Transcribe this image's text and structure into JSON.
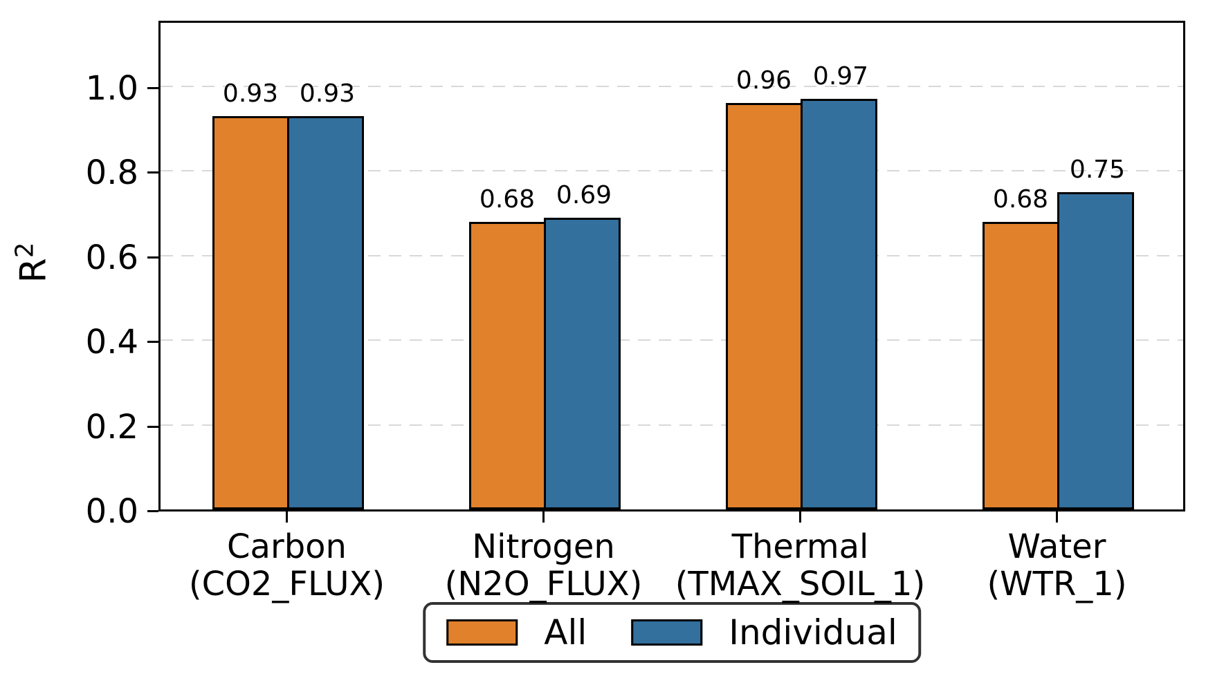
{
  "chart_data": {
    "type": "bar",
    "title": "",
    "xlabel": "",
    "ylabel": "R²",
    "ylabel_base": "R",
    "ylabel_exponent": "2",
    "categories": [
      "Carbon\n(CO2_FLUX)",
      "Nitrogen\n(N2O_FLUX)",
      "Thermal\n(TMAX_SOIL_1)",
      "Water\n(WTR_1)"
    ],
    "series": [
      {
        "name": "All",
        "color": "#e1812c",
        "values": [
          0.93,
          0.68,
          0.96,
          0.68
        ],
        "value_labels": [
          "0.93",
          "0.68",
          "0.96",
          "0.68"
        ]
      },
      {
        "name": "Individual",
        "color": "#33709e",
        "values": [
          0.93,
          0.69,
          0.97,
          0.75
        ],
        "value_labels": [
          "0.93",
          "0.69",
          "0.97",
          "0.75"
        ]
      }
    ],
    "yticks": [
      0,
      0.2,
      0.4,
      0.6,
      0.8,
      1.0
    ],
    "ytick_labels": [
      "0.0",
      "0.2",
      "0.4",
      "0.6",
      "0.8",
      "1.0"
    ],
    "ylim": [
      0,
      1.16
    ],
    "grid": "horizontal-dashed",
    "grid_color": "#d8d8d8",
    "bar_edge_color": "#000000",
    "legend": {
      "labels": [
        "All",
        "Individual"
      ],
      "position": "bottom-center"
    }
  }
}
